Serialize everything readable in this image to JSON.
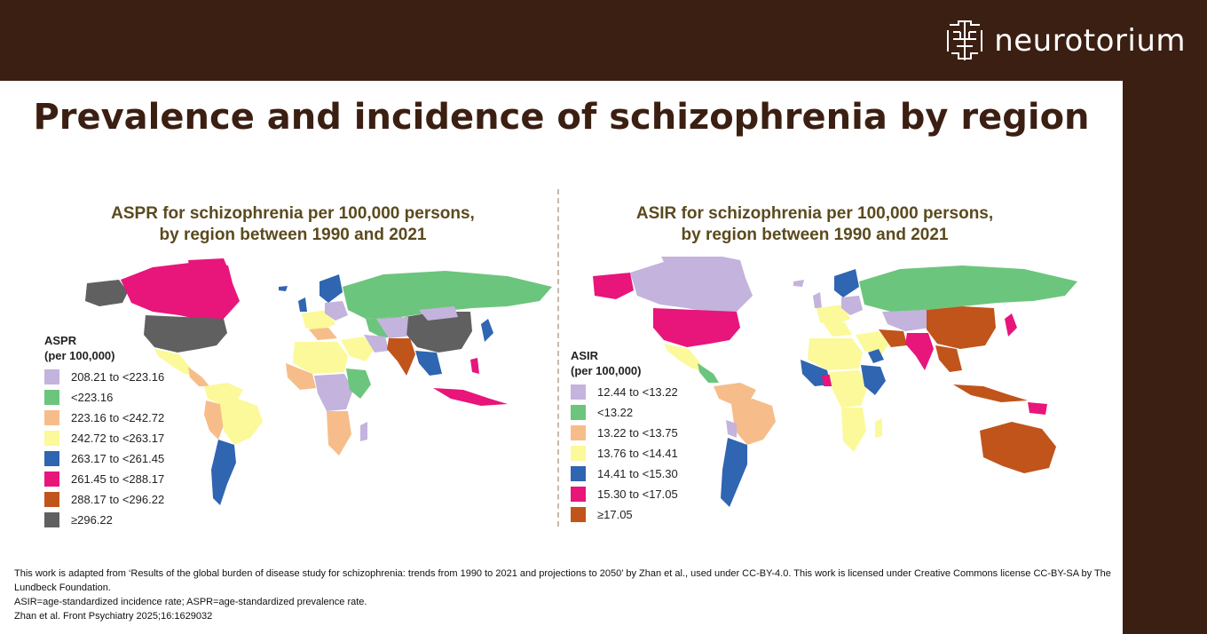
{
  "brand": {
    "name": "neurotorium"
  },
  "title": "Prevalence and incidence of schizophrenia by region",
  "maps": {
    "left": {
      "title_line1": "ASPR for schizophrenia per 100,000 persons,",
      "title_line2": "by region between 1990 and 2021",
      "legend_title_line1": "ASPR",
      "legend_title_line2": "(per 100,000)",
      "legend": [
        {
          "label": "208.21 to <223.16",
          "color": "#c3b3dd"
        },
        {
          "label": "<223.16",
          "color": "#6cc57c"
        },
        {
          "label": "223.16 to <242.72",
          "color": "#f6bd8a"
        },
        {
          "label": "242.72 to <263.17",
          "color": "#fbf99a"
        },
        {
          "label": "263.17 to <261.45",
          "color": "#2f65b1"
        },
        {
          "label": "261.45 to <288.17",
          "color": "#e8157b"
        },
        {
          "label": "288.17 to <296.22",
          "color": "#c0541b"
        },
        {
          "label": "≥296.22",
          "color": "#606060"
        }
      ]
    },
    "right": {
      "title_line1": "ASIR for schizophrenia per 100,000 persons,",
      "title_line2": "by region between 1990 and 2021",
      "legend_title_line1": "ASIR",
      "legend_title_line2": "(per 100,000)",
      "legend": [
        {
          "label": "12.44 to <13.22",
          "color": "#c3b3dd"
        },
        {
          "label": "<13.22",
          "color": "#6cc57c"
        },
        {
          "label": "13.22 to <13.75",
          "color": "#f6bd8a"
        },
        {
          "label": "13.76 to <14.41",
          "color": "#fbf99a"
        },
        {
          "label": "14.41 to <15.30",
          "color": "#2f65b1"
        },
        {
          "label": "15.30 to <17.05",
          "color": "#e8157b"
        },
        {
          "label": "≥17.05",
          "color": "#c0541b"
        }
      ]
    }
  },
  "footer": {
    "line1": "This work is adapted from ‘Results of the global burden of disease study for schizophrenia: trends from 1990 to 2021 and projections to 2050’ by Zhan et al., used under CC-BY-4.0. This work is licensed under Creative Commons license CC-BY-SA by The Lundbeck Foundation.",
    "line2": "ASIR=age-standardized incidence rate; ASPR=age-standardized prevalence rate.",
    "line3": "Zhan et al. Front Psychiatry 2025;16:1629032"
  }
}
